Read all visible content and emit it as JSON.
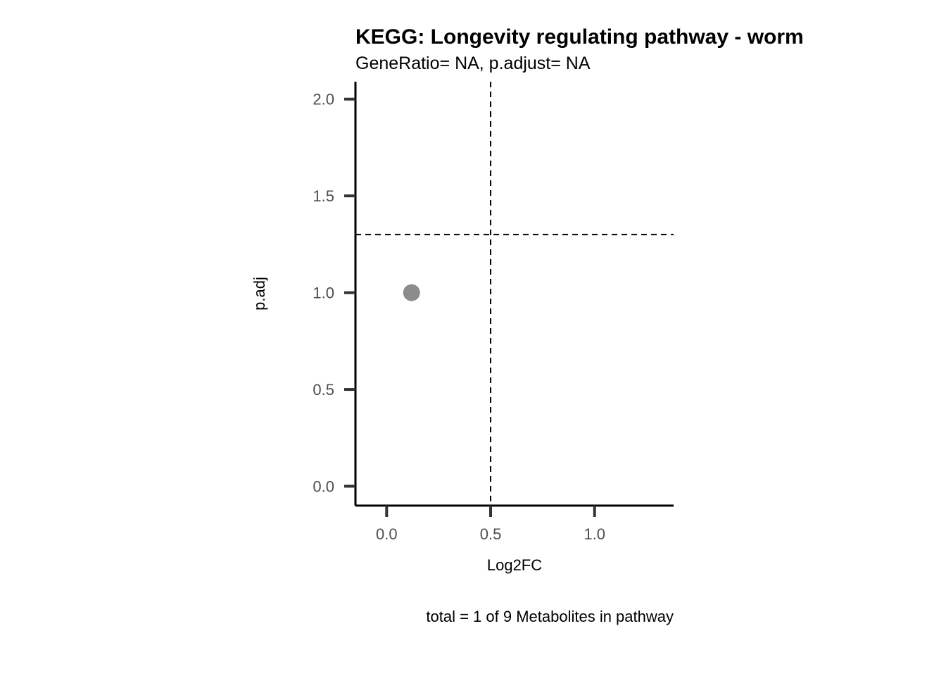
{
  "chart_data": {
    "type": "scatter",
    "title": "KEGG: Longevity regulating pathway - worm",
    "subtitle": "GeneRatio= NA, p.adjust= NA",
    "xlabel": "Log2FC",
    "ylabel": "p.adj",
    "caption": "total = 1 of 9 Metabolites in pathway",
    "xlim": [
      -0.15,
      1.38
    ],
    "ylim": [
      -0.1,
      2.09
    ],
    "x_ticks": [
      0.0,
      0.5,
      1.0
    ],
    "x_tick_labels": [
      "0.0",
      "0.5",
      "1.0"
    ],
    "y_ticks": [
      0.0,
      0.5,
      1.0,
      1.5,
      2.0
    ],
    "y_tick_labels": [
      "0.0",
      "0.5",
      "1.0",
      "1.5",
      "2.0"
    ],
    "points": [
      {
        "x": 0.12,
        "y": 1.0
      }
    ],
    "point_color": "#8c8c8c",
    "reference_lines": {
      "vertical_x": 0.5,
      "horizontal_y": 1.3,
      "style": "dashed",
      "color": "#000000"
    },
    "grid": false,
    "legend": "none"
  }
}
